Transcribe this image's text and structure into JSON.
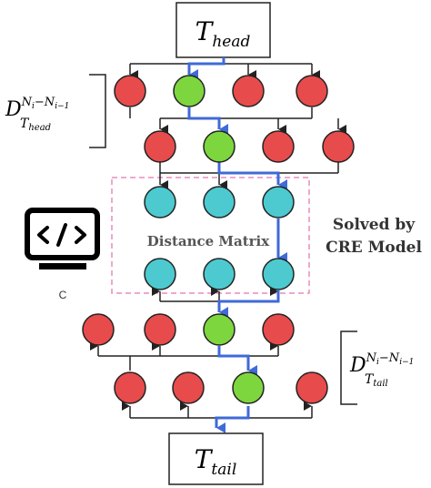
{
  "boxes": {
    "head": {
      "symbol": "T",
      "subscript": "head"
    },
    "tail": {
      "symbol": "T",
      "subscript": "tail"
    }
  },
  "annotations": {
    "head_distance": {
      "base": "D",
      "superscript": "N",
      "sup_sub_i": "i",
      "sup_minus": "−N",
      "sup_sub_i1": "i−1",
      "subscript": "T",
      "sub_sub": "head"
    },
    "tail_distance": {
      "base": "D",
      "superscript": "N",
      "sup_sub_i": "i",
      "sup_minus": "−N",
      "sup_sub_i1": "i−1",
      "subscript": "T",
      "sub_sub": "tail"
    },
    "matrix_label": "Distance Matrix",
    "solved_line1": "Solved by",
    "solved_line2": "CRE Model",
    "icon_caption": "C"
  },
  "icons": {
    "code": "code-monitor-icon"
  },
  "colors": {
    "red_node": "#e84b4b",
    "green_node": "#7ed63f",
    "cyan_node": "#4ccad0",
    "path_blue": "#3f6ad8",
    "dashed_box": "#e98bbd",
    "line": "#222222"
  },
  "layers": {
    "head_layer_1": [
      "red",
      "green",
      "red",
      "red"
    ],
    "head_layer_2": [
      "red",
      "green",
      "red",
      "red"
    ],
    "matrix_top": [
      "cyan",
      "cyan",
      "cyan"
    ],
    "matrix_bottom": [
      "cyan",
      "cyan",
      "cyan"
    ],
    "tail_layer_1": [
      "red",
      "red",
      "green",
      "red"
    ],
    "tail_layer_2": [
      "red",
      "red",
      "green",
      "red"
    ]
  }
}
